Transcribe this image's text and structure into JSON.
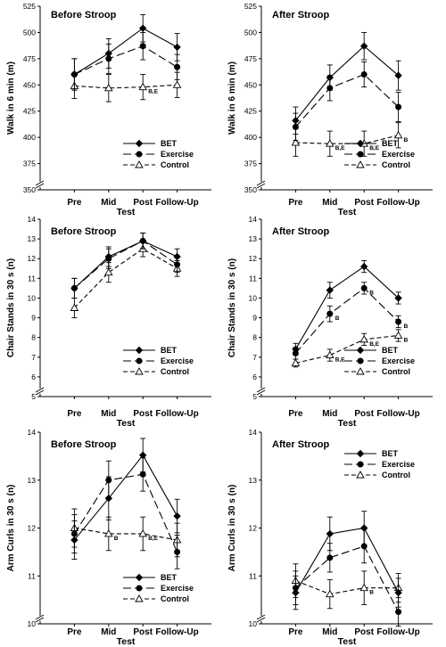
{
  "chart_data": [
    {
      "type": "line",
      "title": "Before Stroop",
      "xlabel": "Test",
      "ylabel": "Walk in 6 min (m)",
      "categories": [
        "Pre",
        "Mid",
        "Post",
        "Follow-Up"
      ],
      "ylim": [
        350,
        525
      ],
      "yticks": [
        350,
        375,
        400,
        425,
        450,
        475,
        500,
        525
      ],
      "axis_break": true,
      "legend_position": "bottom-right",
      "series": [
        {
          "name": "BET",
          "marker": "diamond",
          "dash": "solid",
          "values": [
            460,
            480,
            504,
            486
          ],
          "errors": [
            15,
            14,
            13,
            13
          ]
        },
        {
          "name": "Exercise",
          "marker": "circle",
          "dash": "long-dash",
          "values": [
            460,
            475,
            487,
            467
          ],
          "errors": [
            15,
            14,
            13,
            12
          ]
        },
        {
          "name": "Control",
          "marker": "open-triangle",
          "dash": "short-dash",
          "values": [
            449,
            447,
            448,
            450
          ],
          "errors": [
            12,
            13,
            12,
            12
          ]
        }
      ],
      "annotations": [
        {
          "series": "Control",
          "category": "Post",
          "text": "B,E"
        }
      ]
    },
    {
      "type": "line",
      "title": "After Stroop",
      "xlabel": "Test",
      "ylabel": "Walk in 6 min (m)",
      "categories": [
        "Pre",
        "Mid",
        "Post",
        "Follow-Up"
      ],
      "ylim": [
        350,
        525
      ],
      "yticks": [
        350,
        375,
        400,
        425,
        450,
        475,
        500,
        525
      ],
      "axis_break": true,
      "legend_position": "bottom-right",
      "series": [
        {
          "name": "BET",
          "marker": "diamond",
          "dash": "solid",
          "values": [
            416,
            457,
            487,
            459
          ],
          "errors": [
            13,
            12,
            13,
            14
          ]
        },
        {
          "name": "Exercise",
          "marker": "circle",
          "dash": "long-dash",
          "values": [
            410,
            447,
            460,
            429
          ],
          "errors": [
            13,
            12,
            12,
            14
          ]
        },
        {
          "name": "Control",
          "marker": "open-triangle",
          "dash": "short-dash",
          "values": [
            395,
            394,
            394,
            402
          ],
          "errors": [
            13,
            12,
            12,
            12
          ]
        }
      ],
      "annotations": [
        {
          "series": "Control",
          "category": "Mid",
          "text": "B,E"
        },
        {
          "series": "Control",
          "category": "Post",
          "text": "B,E"
        },
        {
          "series": "Control",
          "category": "Follow-Up",
          "text": "B"
        }
      ]
    },
    {
      "type": "line",
      "title": "Before Stroop",
      "xlabel": "Test",
      "ylabel": "Chair Stands in 30 s (n)",
      "categories": [
        "Pre",
        "Mid",
        "Post",
        "Follow-Up"
      ],
      "ylim": [
        5,
        14
      ],
      "yticks": [
        5,
        6,
        7,
        8,
        9,
        10,
        11,
        12,
        13,
        14
      ],
      "axis_break": true,
      "legend_position": "bottom-right",
      "series": [
        {
          "name": "BET",
          "marker": "diamond",
          "dash": "solid",
          "values": [
            10.5,
            12.1,
            12.9,
            12.1
          ],
          "errors": [
            0.5,
            0.5,
            0.4,
            0.4
          ]
        },
        {
          "name": "Exercise",
          "marker": "circle",
          "dash": "long-dash",
          "values": [
            10.5,
            12.0,
            12.9,
            11.7
          ],
          "errors": [
            0.5,
            0.5,
            0.4,
            0.4
          ]
        },
        {
          "name": "Control",
          "marker": "open-triangle",
          "dash": "short-dash",
          "values": [
            9.5,
            11.3,
            12.5,
            11.5
          ],
          "errors": [
            0.5,
            0.5,
            0.4,
            0.4
          ]
        }
      ],
      "annotations": []
    },
    {
      "type": "line",
      "title": "After Stroop",
      "xlabel": "Test",
      "ylabel": "Chair Stands in 30 s (n)",
      "categories": [
        "Pre",
        "Mid",
        "Post",
        "Follow-Up"
      ],
      "ylim": [
        5,
        14
      ],
      "yticks": [
        5,
        6,
        7,
        8,
        9,
        10,
        11,
        12,
        13,
        14
      ],
      "axis_break": true,
      "legend_position": "bottom-right",
      "series": [
        {
          "name": "BET",
          "marker": "diamond",
          "dash": "solid",
          "values": [
            7.4,
            10.4,
            11.6,
            10.0
          ],
          "errors": [
            0.3,
            0.4,
            0.3,
            0.3
          ]
        },
        {
          "name": "Exercise",
          "marker": "circle",
          "dash": "long-dash",
          "values": [
            7.2,
            9.2,
            10.5,
            8.8
          ],
          "errors": [
            0.3,
            0.4,
            0.3,
            0.3
          ]
        },
        {
          "name": "Control",
          "marker": "open-triangle",
          "dash": "short-dash",
          "values": [
            6.7,
            7.1,
            7.9,
            8.1
          ],
          "errors": [
            0.2,
            0.3,
            0.3,
            0.3
          ]
        }
      ],
      "annotations": [
        {
          "series": "Exercise",
          "category": "Mid",
          "text": "B"
        },
        {
          "series": "Exercise",
          "category": "Post",
          "text": "B"
        },
        {
          "series": "Exercise",
          "category": "Follow-Up",
          "text": "B"
        },
        {
          "series": "Control",
          "category": "Mid",
          "text": "B,E"
        },
        {
          "series": "Control",
          "category": "Post",
          "text": "B,E"
        },
        {
          "series": "Control",
          "category": "Follow-Up",
          "text": "B"
        }
      ]
    },
    {
      "type": "line",
      "title": "Before Stroop",
      "xlabel": "Test",
      "ylabel": "Arm Curls in 30 s (n)",
      "categories": [
        "Pre",
        "Mid",
        "Post",
        "Follow-Up"
      ],
      "ylim": [
        10,
        14
      ],
      "yticks": [
        10,
        11,
        12,
        13,
        14
      ],
      "axis_break": true,
      "legend_position": "bottom-right",
      "series": [
        {
          "name": "BET",
          "marker": "diamond",
          "dash": "solid",
          "values": [
            11.75,
            12.62,
            13.52,
            12.25
          ],
          "errors": [
            0.4,
            0.45,
            0.35,
            0.35
          ]
        },
        {
          "name": "Exercise",
          "marker": "circle",
          "dash": "long-dash",
          "values": [
            11.88,
            13.0,
            13.12,
            11.5
          ],
          "errors": [
            0.4,
            0.4,
            0.35,
            0.35
          ]
        },
        {
          "name": "Control",
          "marker": "open-triangle",
          "dash": "short-dash",
          "values": [
            12.0,
            11.88,
            11.88,
            11.75
          ],
          "errors": [
            0.4,
            0.35,
            0.35,
            0.35
          ]
        }
      ],
      "annotations": [
        {
          "series": "Control",
          "category": "Mid",
          "text": "B"
        },
        {
          "series": "Control",
          "category": "Post",
          "text": "B,E"
        }
      ]
    },
    {
      "type": "line",
      "title": "After Stroop",
      "xlabel": "Test",
      "ylabel": "Arm Curls in 30 s (n)",
      "categories": [
        "Pre",
        "Mid",
        "Post",
        "Follow-Up"
      ],
      "ylim": [
        10,
        14
      ],
      "yticks": [
        10,
        11,
        12,
        13,
        14
      ],
      "axis_break": true,
      "legend_position": "top-right",
      "series": [
        {
          "name": "BET",
          "marker": "diamond",
          "dash": "solid",
          "values": [
            10.65,
            11.88,
            12.0,
            10.65
          ],
          "errors": [
            0.35,
            0.35,
            0.35,
            0.3
          ]
        },
        {
          "name": "Exercise",
          "marker": "circle",
          "dash": "long-dash",
          "values": [
            10.75,
            11.38,
            11.62,
            10.25
          ],
          "errors": [
            0.35,
            0.3,
            0.35,
            0.3
          ]
        },
        {
          "name": "Control",
          "marker": "open-triangle",
          "dash": "short-dash",
          "values": [
            10.9,
            10.62,
            10.75,
            10.75
          ],
          "errors": [
            0.35,
            0.3,
            0.35,
            0.3
          ]
        }
      ],
      "annotations": [
        {
          "series": "Control",
          "category": "Post",
          "text": "B"
        }
      ]
    }
  ]
}
